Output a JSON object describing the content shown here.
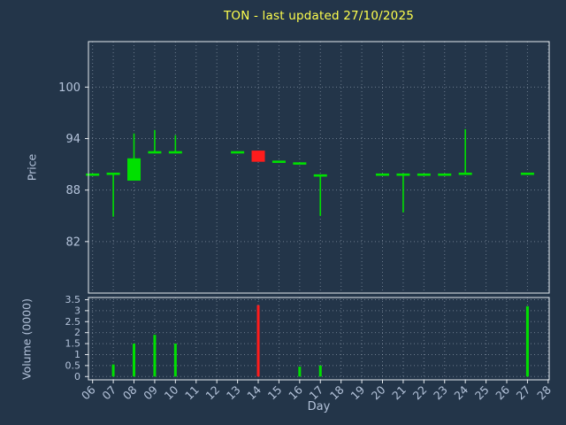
{
  "chart_data": {
    "type": "candlestick",
    "title": "TON - last updated 27/10/2025",
    "xlabel": "Day",
    "ylabel_price": "Price",
    "ylabel_volume": "Volume (0000)",
    "x_tick_labels": [
      "06",
      "07",
      "08",
      "09",
      "10",
      "11",
      "12",
      "13",
      "14",
      "15",
      "16",
      "17",
      "18",
      "19",
      "20",
      "21",
      "22",
      "23",
      "24",
      "25",
      "26",
      "27",
      "28"
    ],
    "price_ticks": [
      82,
      88,
      94,
      100
    ],
    "volume_ticks": [
      0,
      0.5,
      1,
      1.5,
      2,
      2.5,
      3,
      3.5
    ],
    "x_range": [
      5.8,
      28.05
    ],
    "price_range": [
      76,
      105.3
    ],
    "volume_range": [
      -0.15,
      3.6
    ],
    "grid": "dotted",
    "legend": "none",
    "colors": {
      "background": "#233549",
      "up": "#00e000",
      "down": "#ff1c1c",
      "grid": "#c2cedd",
      "axis": "#e6ebf0",
      "label": "#b4c3da",
      "title": "#ffff4d"
    },
    "candles": [
      {
        "day": 6,
        "open": 89.8,
        "high": 89.8,
        "low": 89.8,
        "close": 89.8,
        "volume": 0
      },
      {
        "day": 7,
        "open": 89.9,
        "high": 89.9,
        "low": 84.9,
        "close": 89.9,
        "volume": 0.55
      },
      {
        "day": 8,
        "open": 89.1,
        "high": 94.6,
        "low": 89.1,
        "close": 91.7,
        "volume": 1.5
      },
      {
        "day": 9,
        "open": 92.4,
        "high": 95.0,
        "low": 92.4,
        "close": 92.4,
        "volume": 1.9
      },
      {
        "day": 10,
        "open": 92.4,
        "high": 94.4,
        "low": 92.4,
        "close": 92.4,
        "volume": 1.5
      },
      {
        "day": 13,
        "open": 92.4,
        "high": 92.4,
        "low": 92.4,
        "close": 92.4,
        "volume": 0
      },
      {
        "day": 14,
        "open": 92.6,
        "high": 92.6,
        "low": 91.3,
        "close": 91.3,
        "volume": 3.25
      },
      {
        "day": 15,
        "open": 91.3,
        "high": 91.3,
        "low": 91.3,
        "close": 91.3,
        "volume": 0
      },
      {
        "day": 16,
        "open": 91.1,
        "high": 91.1,
        "low": 91.1,
        "close": 91.1,
        "volume": 0.45
      },
      {
        "day": 17,
        "open": 89.7,
        "high": 89.7,
        "low": 85.0,
        "close": 89.7,
        "volume": 0.5
      },
      {
        "day": 20,
        "open": 89.8,
        "high": 89.8,
        "low": 89.8,
        "close": 89.8,
        "volume": 0
      },
      {
        "day": 21,
        "open": 89.8,
        "high": 89.8,
        "low": 85.4,
        "close": 89.8,
        "volume": 0
      },
      {
        "day": 22,
        "open": 89.8,
        "high": 89.8,
        "low": 89.8,
        "close": 89.8,
        "volume": 0
      },
      {
        "day": 23,
        "open": 89.8,
        "high": 89.8,
        "low": 89.8,
        "close": 89.8,
        "volume": 0
      },
      {
        "day": 24,
        "open": 89.9,
        "high": 95.1,
        "low": 89.9,
        "close": 89.9,
        "volume": 0
      },
      {
        "day": 27,
        "open": 89.9,
        "high": 89.9,
        "low": 89.9,
        "close": 89.9,
        "volume": 3.2
      }
    ]
  }
}
